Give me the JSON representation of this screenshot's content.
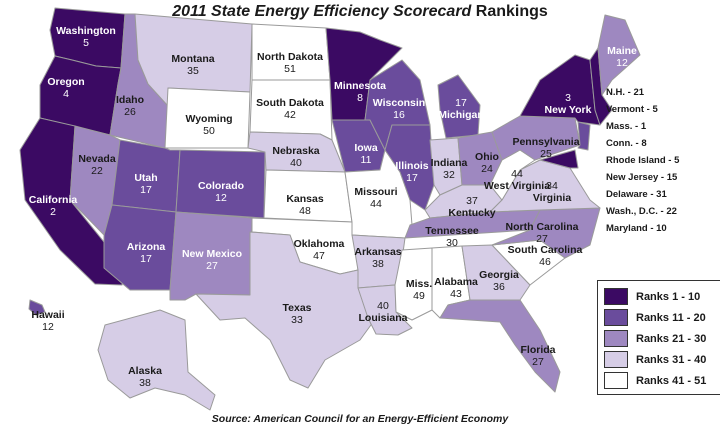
{
  "title": {
    "italic": "2011 State Energy Efficiency Scorecard",
    "plain": " Rankings"
  },
  "source": "Source: American Council for an Energy-Efficient Economy",
  "colors": {
    "tier1": "#3b0a63",
    "tier2": "#6a4c9c",
    "tier3": "#9e88c0",
    "tier4": "#d6cde6",
    "tier5": "#ffffff",
    "border": "#9a9a9a",
    "ocean": "#ffffff"
  },
  "legend": [
    {
      "label": "Ranks 1 - 10",
      "color": "#3b0a63"
    },
    {
      "label": "Ranks 11 - 20",
      "color": "#6a4c9c"
    },
    {
      "label": "Ranks 21 - 30",
      "color": "#9e88c0"
    },
    {
      "label": "Ranks 31 - 40",
      "color": "#d6cde6"
    },
    {
      "label": "Ranks 41 - 51",
      "color": "#ffffff"
    }
  ],
  "small_states": [
    "N.H. - 21",
    "Vermont - 5",
    "Mass. - 1",
    "Conn. - 8",
    "Rhode Island - 5",
    "New Jersey - 15",
    "Delaware - 31",
    "Wash., D.C. - 22",
    "Maryland - 10"
  ],
  "states": [
    {
      "name": "Washington",
      "rank": "5"
    },
    {
      "name": "Oregon",
      "rank": "4"
    },
    {
      "name": "California",
      "rank": "2"
    },
    {
      "name": "Idaho",
      "rank": "26"
    },
    {
      "name": "Nevada",
      "rank": "22"
    },
    {
      "name": "Montana",
      "rank": "35"
    },
    {
      "name": "Wyoming",
      "rank": "50"
    },
    {
      "name": "Utah",
      "rank": "17"
    },
    {
      "name": "Arizona",
      "rank": "17"
    },
    {
      "name": "Colorado",
      "rank": "12"
    },
    {
      "name": "New Mexico",
      "rank": "27"
    },
    {
      "name": "North Dakota",
      "rank": "51"
    },
    {
      "name": "South Dakota",
      "rank": "42"
    },
    {
      "name": "Nebraska",
      "rank": "40"
    },
    {
      "name": "Kansas",
      "rank": "48"
    },
    {
      "name": "Oklahoma",
      "rank": "47"
    },
    {
      "name": "Texas",
      "rank": "33"
    },
    {
      "name": "Minnesota",
      "rank": "8"
    },
    {
      "name": "Iowa",
      "rank": "11"
    },
    {
      "name": "Missouri",
      "rank": "44"
    },
    {
      "name": "Arkansas",
      "rank": "38"
    },
    {
      "name": "Louisiana",
      "rank": "40"
    },
    {
      "name": "Wisconsin",
      "rank": "16"
    },
    {
      "name": "Illinois",
      "rank": "17"
    },
    {
      "name": "Michigan",
      "rank": "17"
    },
    {
      "name": "Indiana",
      "rank": "32"
    },
    {
      "name": "Ohio",
      "rank": "24"
    },
    {
      "name": "Kentucky",
      "rank": "37"
    },
    {
      "name": "Tennessee",
      "rank": "30"
    },
    {
      "name": "Miss.",
      "rank": "49"
    },
    {
      "name": "Alabama",
      "rank": "43"
    },
    {
      "name": "Georgia",
      "rank": "36"
    },
    {
      "name": "Florida",
      "rank": "27"
    },
    {
      "name": "South Carolina",
      "rank": "46"
    },
    {
      "name": "North Carolina",
      "rank": "27"
    },
    {
      "name": "Virginia",
      "rank": "34"
    },
    {
      "name": "West Virginia",
      "rank": "44"
    },
    {
      "name": "Pennsylvania",
      "rank": "25"
    },
    {
      "name": "New York",
      "rank": "3"
    },
    {
      "name": "Maine",
      "rank": "12"
    },
    {
      "name": "Alaska",
      "rank": "38"
    },
    {
      "name": "Hawaii",
      "rank": "12"
    }
  ]
}
